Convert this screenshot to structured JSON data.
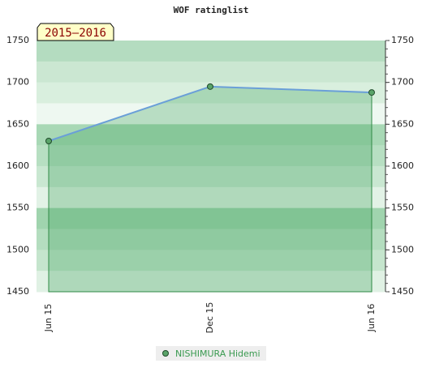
{
  "chart_data": {
    "type": "line",
    "title": "WOF ratinglist",
    "subtitle": "2015–2016",
    "categories": [
      "Jun 15",
      "Dec 15",
      "Jun 16"
    ],
    "series": [
      {
        "name": "NISHIMURA Hidemi",
        "color": "#6a9fd8",
        "values": [
          1630,
          1695,
          1688
        ]
      }
    ],
    "ylim": [
      1450,
      1750
    ],
    "yticks": [
      1450,
      1500,
      1550,
      1600,
      1650,
      1700,
      1750
    ]
  }
}
